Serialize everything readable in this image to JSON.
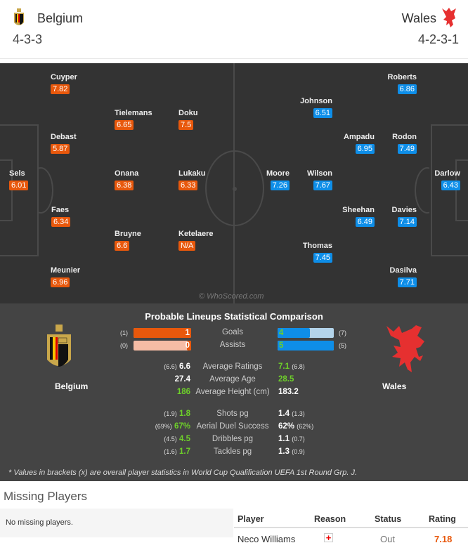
{
  "home": {
    "name": "Belgium",
    "formation": "4-3-3",
    "color": "#e8580c",
    "players": [
      {
        "name": "Cuyper",
        "rating": "7.82"
      },
      {
        "name": "Debast",
        "rating": "5.87"
      },
      {
        "name": "Sels",
        "rating": "6.01"
      },
      {
        "name": "Faes",
        "rating": "6.34"
      },
      {
        "name": "Meunier",
        "rating": "6.96"
      },
      {
        "name": "Tielemans",
        "rating": "6.65"
      },
      {
        "name": "Onana",
        "rating": "6.38"
      },
      {
        "name": "Bruyne",
        "rating": "6.6"
      },
      {
        "name": "Doku",
        "rating": "7.5"
      },
      {
        "name": "Lukaku",
        "rating": "6.33"
      },
      {
        "name": "Ketelaere",
        "rating": "N/A"
      }
    ]
  },
  "away": {
    "name": "Wales",
    "formation": "4-2-3-1",
    "color": "#0e8ee8",
    "players": [
      {
        "name": "Roberts",
        "rating": "6.86"
      },
      {
        "name": "Rodon",
        "rating": "7.49"
      },
      {
        "name": "Davies",
        "rating": "7.14"
      },
      {
        "name": "Dasilva",
        "rating": "7.71"
      },
      {
        "name": "Darlow",
        "rating": "6.43"
      },
      {
        "name": "Ampadu",
        "rating": "6.95"
      },
      {
        "name": "Sheehan",
        "rating": "6.49"
      },
      {
        "name": "Johnson",
        "rating": "6.51"
      },
      {
        "name": "Wilson",
        "rating": "7.67"
      },
      {
        "name": "Thomas",
        "rating": "7.45"
      },
      {
        "name": "Moore",
        "rating": "7.26"
      }
    ]
  },
  "watermark": "© WhoScored.com",
  "comparison": {
    "title": "Probable Lineups Statistical Comparison",
    "bars": [
      {
        "label": "Goals",
        "home": "1",
        "home_overall": "(1)",
        "away": "4",
        "away_overall": "(7)",
        "home_fill": 1.0,
        "away_fill": 0.57
      },
      {
        "label": "Assists",
        "home": "0",
        "home_overall": "(0)",
        "away": "5",
        "away_overall": "(5)",
        "home_fill": 0.0,
        "away_fill": 1.0
      }
    ],
    "rows": [
      {
        "label": "Average Ratings",
        "home_overall": "(6.6)",
        "home": "6.6",
        "away": "7.1",
        "away_overall": "(6.8)",
        "better": "away"
      },
      {
        "label": "Average Age",
        "home_overall": "",
        "home": "27.4",
        "away": "28.5",
        "away_overall": "",
        "better": "away"
      },
      {
        "label": "Average Height (cm)",
        "home_overall": "",
        "home": "186",
        "away": "183.2",
        "away_overall": "",
        "better": "home"
      },
      {
        "label": "Shots pg",
        "home_overall": "(1.9)",
        "home": "1.8",
        "away": "1.4",
        "away_overall": "(1.3)",
        "better": "home"
      },
      {
        "label": "Aerial Duel Success",
        "home_overall": "(69%)",
        "home": "67%",
        "away": "62%",
        "away_overall": "(62%)",
        "better": "home"
      },
      {
        "label": "Dribbles pg",
        "home_overall": "(4.5)",
        "home": "4.5",
        "away": "1.1",
        "away_overall": "(0.7)",
        "better": "home"
      },
      {
        "label": "Tackles pg",
        "home_overall": "(1.6)",
        "home": "1.7",
        "away": "1.3",
        "away_overall": "(0.9)",
        "better": "home"
      }
    ],
    "note": "* Values in brackets (x) are overall player statistics in World Cup Qualification UEFA 1st Round Grp. J."
  },
  "missing": {
    "title": "Missing Players",
    "home_text": "No missing players.",
    "columns": [
      "Player",
      "Reason",
      "Status",
      "Rating"
    ],
    "rows": [
      {
        "player": "Neco Williams",
        "reason_icon": "injury-cross-icon",
        "status": "Out",
        "rating": "7.18"
      }
    ]
  }
}
